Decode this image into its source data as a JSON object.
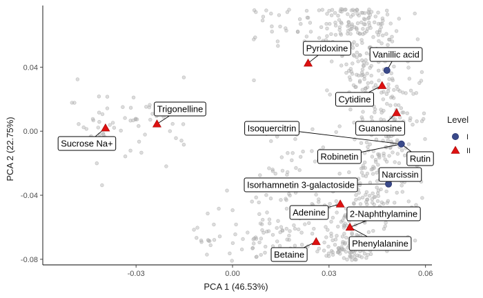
{
  "chart_data": {
    "type": "scatter",
    "title": "",
    "xlabel": "PCA 1 (46.53%)",
    "ylabel": "PCA 2 (22.75%)",
    "xlim": [
      -0.059,
      0.062
    ],
    "ylim": [
      -0.0835,
      0.0785
    ],
    "xticks": [
      -0.03,
      0.0,
      0.03,
      0.06
    ],
    "xtick_labels": [
      "-0.03",
      "0.00",
      "0.03",
      "0.06"
    ],
    "yticks": [
      -0.08,
      -0.04,
      0.0,
      0.04
    ],
    "ytick_labels": [
      "-0.08",
      "-0.04",
      "0.00",
      "0.04"
    ],
    "grid": false,
    "legend": {
      "title": "Level",
      "position": "right",
      "entries": [
        {
          "label": "I",
          "shape": "circle",
          "color": "#3a4a8a"
        },
        {
          "label": "II",
          "shape": "triangle",
          "color": "#dd1111"
        }
      ]
    },
    "background_points_color": "#b3b3b3",
    "background_points_note": "approx. 800 unlabelled grey points spread in an arc from (-0.055, 0.015) through the top and bottom toward (0.055, 0)",
    "labeled_points": [
      {
        "label": "Pyridoxine",
        "x": 0.0235,
        "y": 0.0425,
        "level": "II"
      },
      {
        "label": "Vanillic acid",
        "x": 0.048,
        "y": 0.038,
        "level": "I"
      },
      {
        "label": "Cytidine",
        "x": 0.0465,
        "y": 0.0285,
        "level": "II"
      },
      {
        "label": "Trigonelline",
        "x": -0.0235,
        "y": 0.0045,
        "level": "II"
      },
      {
        "label": "Sucrose Na+",
        "x": -0.0395,
        "y": 0.002,
        "level": "II"
      },
      {
        "label": "Guanosine",
        "x": 0.051,
        "y": 0.0115,
        "level": "II"
      },
      {
        "label": "Isoquercitrin",
        "x": 0.0525,
        "y": -0.008,
        "level": "I"
      },
      {
        "label": "Robinetin",
        "x": 0.0525,
        "y": -0.008,
        "level": "I"
      },
      {
        "label": "Rutin",
        "x": 0.0525,
        "y": -0.008,
        "level": "I"
      },
      {
        "label": "Narcissin",
        "x": 0.0485,
        "y": -0.033,
        "level": "I"
      },
      {
        "label": "Isorhamnetin 3-galactoside",
        "x": 0.0485,
        "y": -0.033,
        "level": "I"
      },
      {
        "label": "Adenine",
        "x": 0.0335,
        "y": -0.0455,
        "level": "II"
      },
      {
        "label": "2-Naphthylamine",
        "x": 0.0365,
        "y": -0.06,
        "level": "II"
      },
      {
        "label": "Phenylalanine",
        "x": 0.0365,
        "y": -0.06,
        "level": "II"
      },
      {
        "label": "Betaine",
        "x": 0.026,
        "y": -0.069,
        "level": "II"
      }
    ]
  }
}
